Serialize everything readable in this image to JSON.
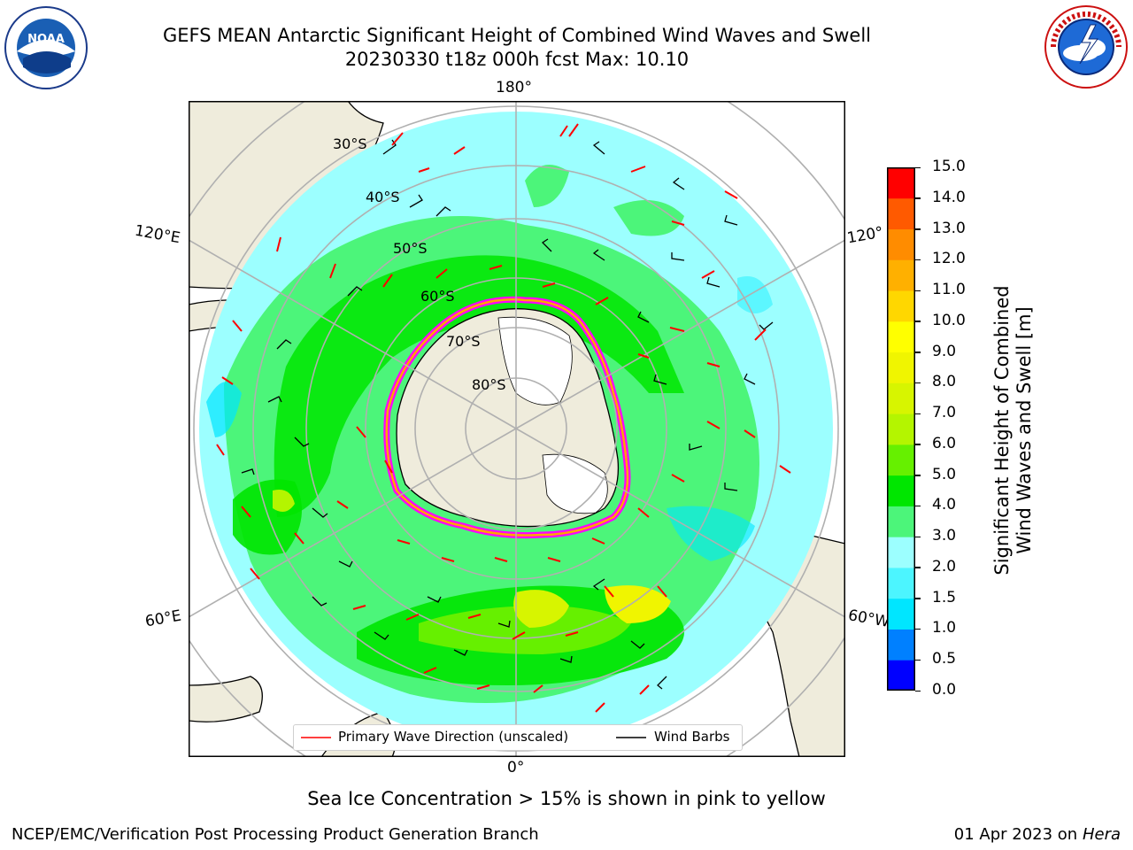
{
  "title": {
    "line1": "GEFS MEAN Antarctic Significant Height of Combined Wind Waves and Swell",
    "line2": "20230330 t18z 000h fcst   Max: 10.10"
  },
  "logos": {
    "left": {
      "name": "NOAA",
      "ring_text": "NATIONAL OCEANIC AND ATMOSPHERIC ADMINISTRATION · U.S. DEPARTMENT OF COMMERCE"
    },
    "right": {
      "name": "NATIONAL WEATHER SERVICE"
    }
  },
  "map": {
    "projection": "south-polar-stereographic",
    "lon_labels": {
      "top": "180°",
      "bottom": "0°",
      "upper_left": "120°E",
      "upper_right": "120°",
      "lower_left": "60°E",
      "lower_right": "60°W"
    },
    "lat_labels": [
      "30°S",
      "40°S",
      "50°S",
      "60°S",
      "70°S",
      "80°S"
    ],
    "sea_ice_colors": [
      "#ff00ff",
      "#ffa500",
      "#ffff00"
    ],
    "land_color": "#efecdc"
  },
  "colorbar": {
    "title_line1": "Significant Height of Combined",
    "title_line2": "Wind Waves and Swell [m]",
    "ticks": [
      "15.0",
      "14.0",
      "13.0",
      "12.0",
      "11.0",
      "10.0",
      "9.0",
      "8.0",
      "7.0",
      "6.0",
      "5.0",
      "4.0",
      "3.0",
      "2.0",
      "1.5",
      "1.0",
      "0.5",
      "0.0"
    ],
    "levels": [
      0.0,
      0.5,
      1.0,
      1.5,
      2.0,
      3.0,
      4.0,
      5.0,
      6.0,
      7.0,
      8.0,
      9.0,
      10.0,
      11.0,
      12.0,
      13.0,
      14.0,
      15.0
    ],
    "colors": [
      "#0000ff",
      "#0080ff",
      "#00e6ff",
      "#4cf5ff",
      "#9cffff",
      "#4cf57a",
      "#00e600",
      "#66f000",
      "#b4f500",
      "#d7f500",
      "#f0f500",
      "#ffff00",
      "#ffd700",
      "#ffb000",
      "#ff8c00",
      "#ff5a00",
      "#ff0000"
    ]
  },
  "legend": {
    "wave_label": "Primary Wave Direction (unscaled)",
    "wind_label": "Wind Barbs",
    "wave_color": "#ff0000",
    "wind_color": "#000000"
  },
  "caption": "Sea Ice Concentration > 15% is shown in pink to yellow",
  "footer": {
    "left": "NCEP/EMC/Verification Post Processing Product Generation Branch",
    "right_date": "01 Apr 2023 on ",
    "right_machine": "Hera"
  }
}
